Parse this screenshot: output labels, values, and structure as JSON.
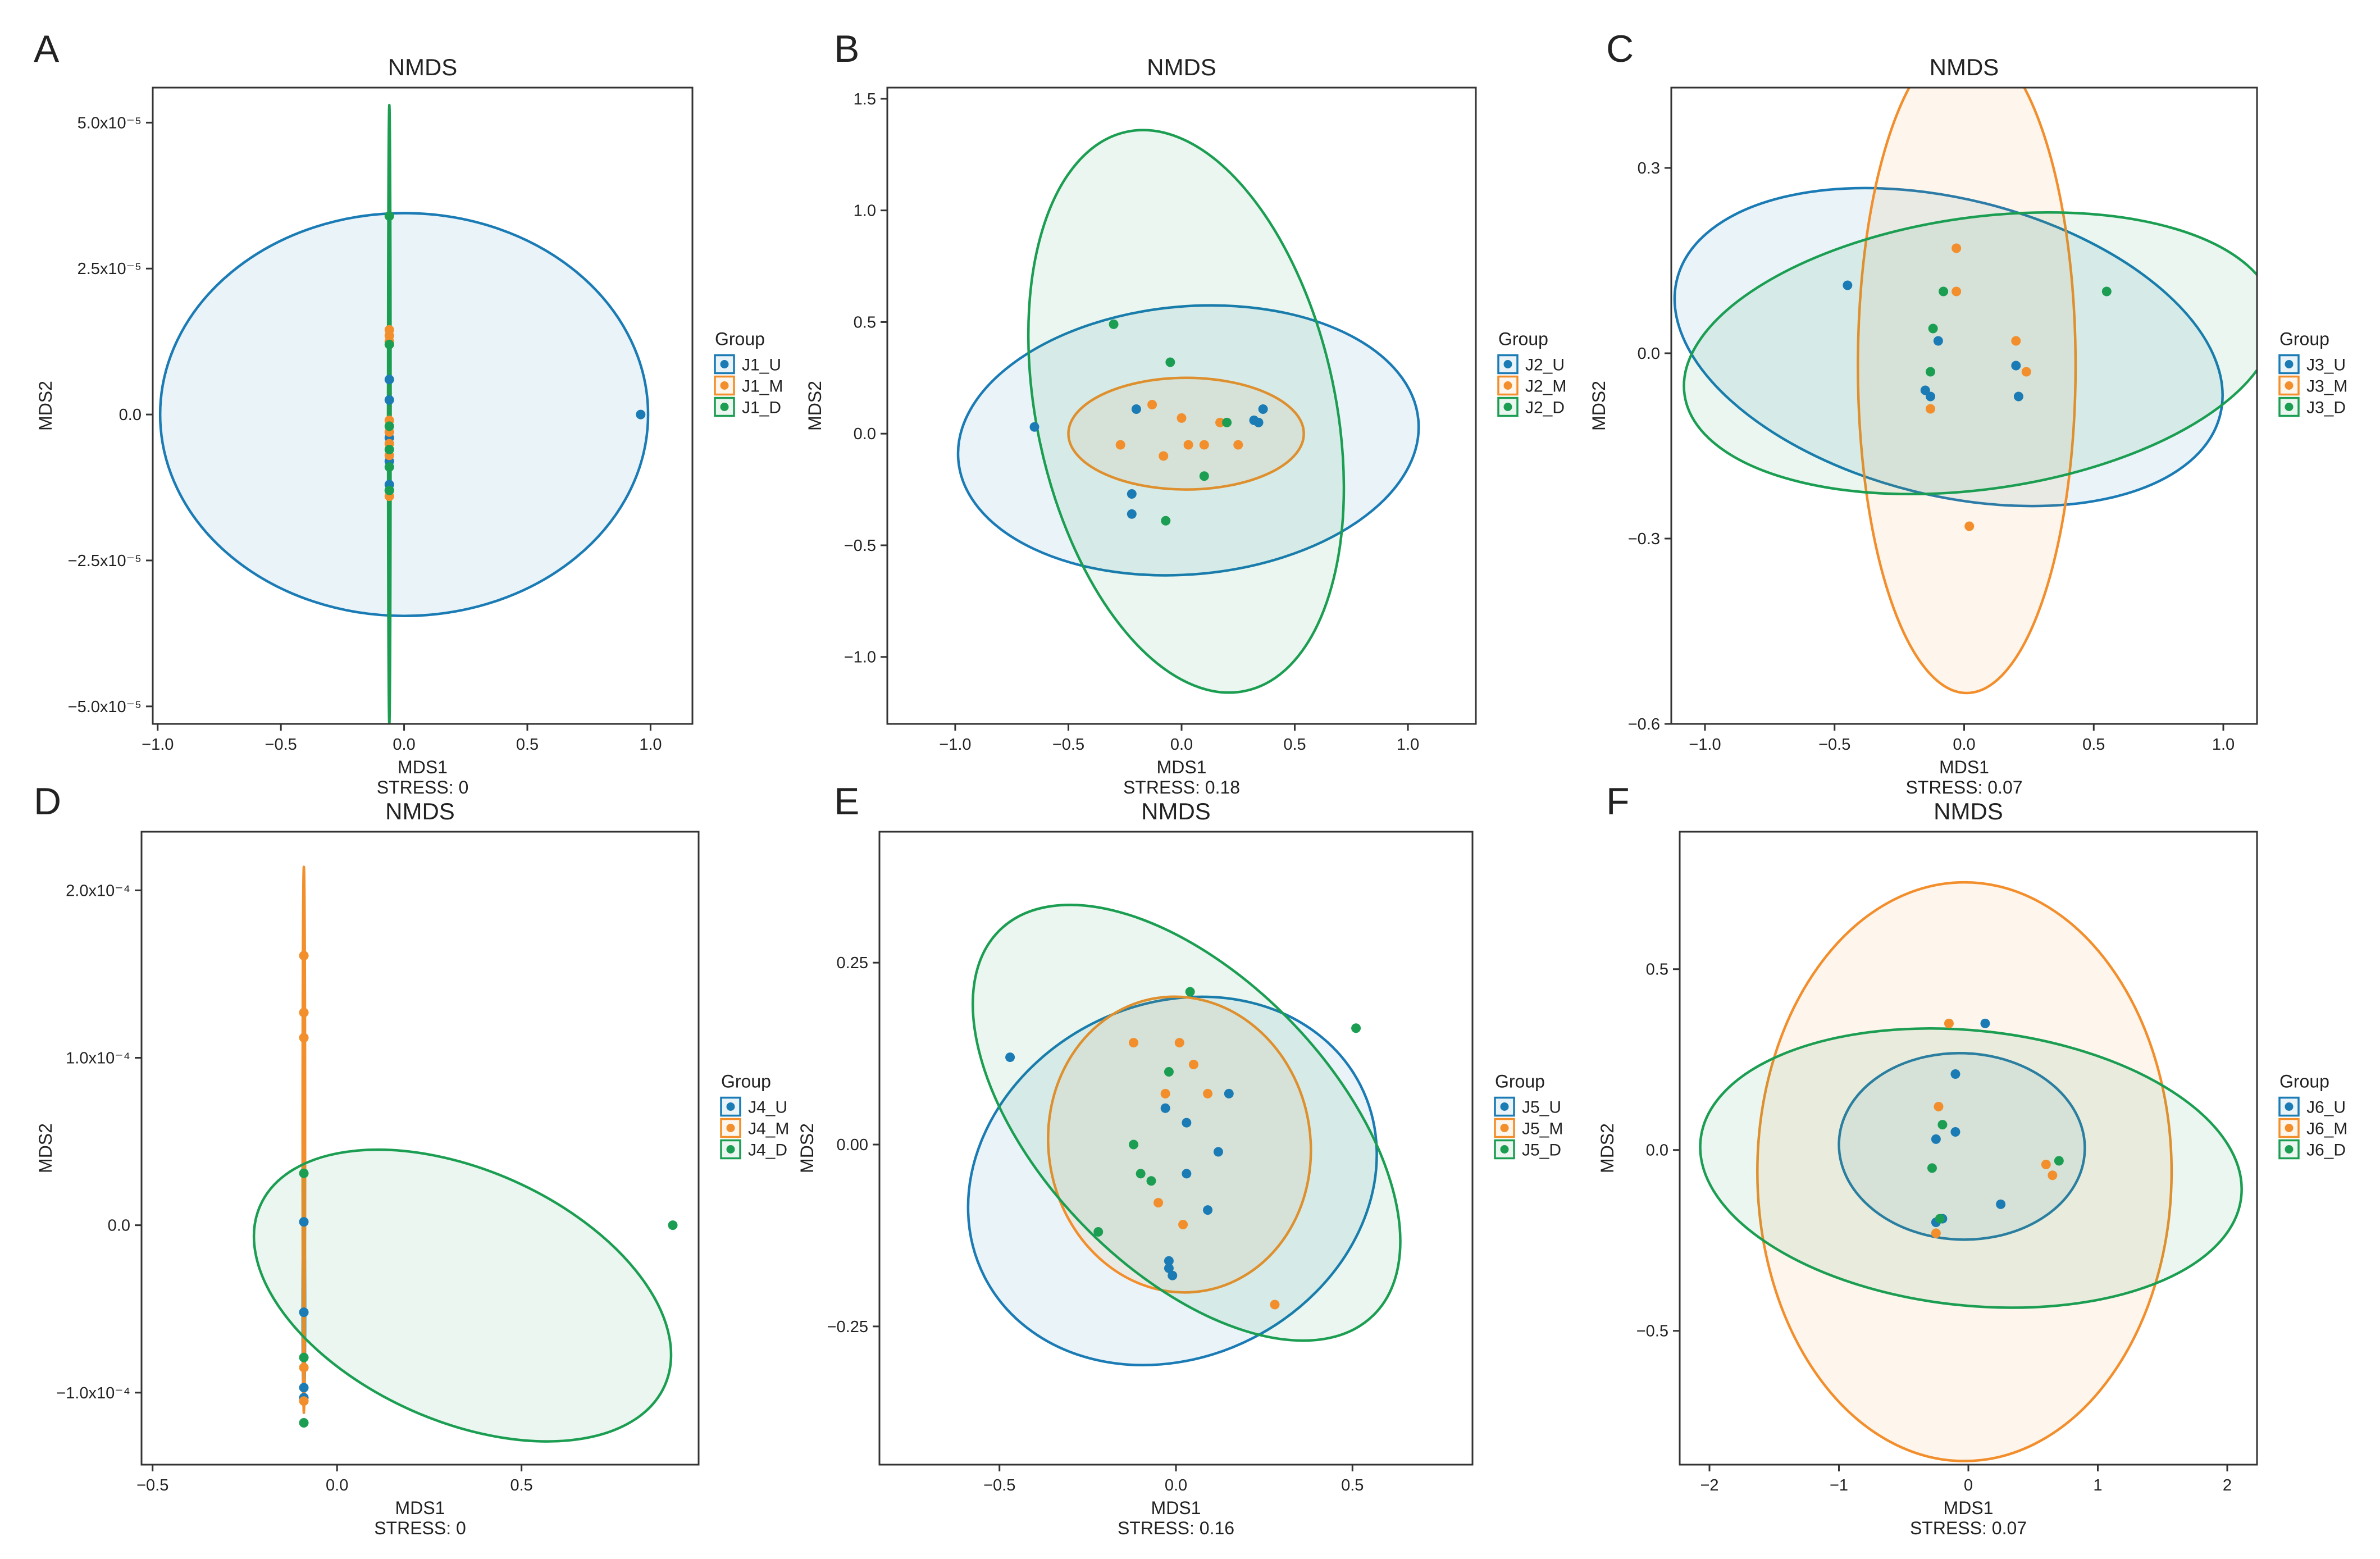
{
  "chart_data": [
    {
      "type": "scatter",
      "panel": "A",
      "title": "NMDS",
      "xlabel": "MDS1",
      "ylabel": "MDS2",
      "stress_label": "STRESS: 0",
      "xlim": [
        -1.02,
        1.17
      ],
      "ylim": [
        -5.3e-05,
        5.6e-05
      ],
      "xticks": [
        {
          "v": -1.0,
          "t": "−1.0"
        },
        {
          "v": -0.5,
          "t": "−0.5"
        },
        {
          "v": 0.0,
          "t": "0.0"
        },
        {
          "v": 0.5,
          "t": "0.5"
        },
        {
          "v": 1.0,
          "t": "1.0"
        }
      ],
      "yticks": [
        {
          "v": -5e-05,
          "t": "−5.0x10⁻⁵"
        },
        {
          "v": -2.5e-05,
          "t": "−2.5x10⁻⁵"
        },
        {
          "v": 0,
          "t": "0.0"
        },
        {
          "v": 2.5e-05,
          "t": "2.5x10⁻⁵"
        },
        {
          "v": 5e-05,
          "t": "5.0x10⁻⁵"
        }
      ],
      "legend_title": "Group",
      "series": [
        {
          "name": "J1_U",
          "color": "#1a7bb5",
          "points": [
            [
              -0.06,
              6e-06
            ],
            [
              -0.06,
              2.5e-06
            ],
            [
              -0.06,
              -4e-06
            ],
            [
              -0.06,
              -8e-06
            ],
            [
              -0.06,
              -1.2e-05
            ],
            [
              -0.06,
              -1.3e-05
            ],
            [
              0.96,
              0
            ]
          ],
          "ellipse": {
            "cx": 0.0,
            "cy": 0.0,
            "rx": 0.99,
            "ry": 3.45e-05,
            "angle": 0
          }
        },
        {
          "name": "J1_M",
          "color": "#f28e2b",
          "points": [
            [
              -0.06,
              1.45e-05
            ],
            [
              -0.06,
              1.35e-05
            ],
            [
              -0.06,
              1.25e-05
            ],
            [
              -0.06,
              -1e-06
            ],
            [
              -0.06,
              -3e-06
            ],
            [
              -0.06,
              -5e-06
            ],
            [
              -0.06,
              -7e-06
            ],
            [
              -0.06,
              -1.4e-05
            ]
          ],
          "ellipse": {
            "cx": -0.06,
            "cy": 0.0,
            "rx": 0.003,
            "ry": 1.6e-05,
            "angle": 0
          }
        },
        {
          "name": "J1_D",
          "color": "#1b9e52",
          "points": [
            [
              -0.06,
              3.4e-05
            ],
            [
              -0.06,
              1.2e-05
            ],
            [
              -0.06,
              -2e-06
            ],
            [
              -0.06,
              -6e-06
            ],
            [
              -0.06,
              -9e-06
            ],
            [
              -0.06,
              -1.3e-05
            ]
          ],
          "ellipse": {
            "cx": -0.06,
            "cy": 0.0,
            "rx": 0.002,
            "ry": 5.3e-05,
            "angle": 0
          }
        }
      ]
    },
    {
      "type": "scatter",
      "panel": "B",
      "title": "NMDS",
      "xlabel": "MDS1",
      "ylabel": "MDS2",
      "stress_label": "STRESS: 0.18",
      "xlim": [
        -1.3,
        1.3
      ],
      "ylim": [
        -1.3,
        1.55
      ],
      "xticks": [
        {
          "v": -1.0,
          "t": "−1.0"
        },
        {
          "v": -0.5,
          "t": "−0.5"
        },
        {
          "v": 0.0,
          "t": "0.0"
        },
        {
          "v": 0.5,
          "t": "0.5"
        },
        {
          "v": 1.0,
          "t": "1.0"
        }
      ],
      "yticks": [
        {
          "v": -1.0,
          "t": "−1.0"
        },
        {
          "v": -0.5,
          "t": "−0.5"
        },
        {
          "v": 0.0,
          "t": "0.0"
        },
        {
          "v": 0.5,
          "t": "0.5"
        },
        {
          "v": 1.0,
          "t": "1.0"
        },
        {
          "v": 1.5,
          "t": "1.5"
        }
      ],
      "legend_title": "Group",
      "series": [
        {
          "name": "J2_U",
          "color": "#1a7bb5",
          "points": [
            [
              -0.65,
              0.03
            ],
            [
              -0.2,
              0.11
            ],
            [
              -0.22,
              -0.27
            ],
            [
              -0.22,
              -0.36
            ],
            [
              0.32,
              0.06
            ],
            [
              0.34,
              0.05
            ],
            [
              0.36,
              0.11
            ]
          ],
          "ellipse": {
            "cx": 0.03,
            "cy": -0.03,
            "rx": 1.02,
            "ry": 0.6,
            "angle": 5
          }
        },
        {
          "name": "J2_M",
          "color": "#f28e2b",
          "points": [
            [
              -0.27,
              -0.05
            ],
            [
              -0.13,
              0.13
            ],
            [
              -0.08,
              -0.1
            ],
            [
              0.0,
              0.07
            ],
            [
              0.03,
              -0.05
            ],
            [
              0.1,
              -0.05
            ],
            [
              0.17,
              0.05
            ],
            [
              0.25,
              -0.05
            ]
          ],
          "ellipse": {
            "cx": 0.02,
            "cy": 0.0,
            "rx": 0.52,
            "ry": 0.25,
            "angle": 0
          }
        },
        {
          "name": "J2_D",
          "color": "#1b9e52",
          "points": [
            [
              -0.3,
              0.49
            ],
            [
              -0.05,
              0.32
            ],
            [
              0.2,
              0.05
            ],
            [
              0.1,
              -0.19
            ],
            [
              -0.07,
              -0.39
            ]
          ],
          "ellipse": {
            "cx": 0.02,
            "cy": 0.1,
            "rx": 0.66,
            "ry": 1.28,
            "angle": 12
          }
        }
      ]
    },
    {
      "type": "scatter",
      "panel": "C",
      "title": "NMDS",
      "xlabel": "MDS1",
      "ylabel": "MDS2",
      "stress_label": "STRESS: 0.07",
      "xlim": [
        -1.13,
        1.13
      ],
      "ylim": [
        -0.6,
        0.43
      ],
      "xticks": [
        {
          "v": -1.0,
          "t": "−1.0"
        },
        {
          "v": -0.5,
          "t": "−0.5"
        },
        {
          "v": 0.0,
          "t": "0.0"
        },
        {
          "v": 0.5,
          "t": "0.5"
        },
        {
          "v": 1.0,
          "t": "1.0"
        }
      ],
      "yticks": [
        {
          "v": -0.6,
          "t": "−0.6"
        },
        {
          "v": -0.3,
          "t": "−0.3"
        },
        {
          "v": 0.0,
          "t": "0.0"
        },
        {
          "v": 0.3,
          "t": "0.3"
        }
      ],
      "legend_title": "Group",
      "series": [
        {
          "name": "J3_U",
          "color": "#1a7bb5",
          "points": [
            [
              -0.45,
              0.11
            ],
            [
              -0.1,
              0.02
            ],
            [
              -0.15,
              -0.06
            ],
            [
              -0.13,
              -0.07
            ],
            [
              0.2,
              -0.02
            ],
            [
              0.21,
              -0.07
            ]
          ],
          "ellipse": {
            "cx": -0.06,
            "cy": 0.01,
            "rx": 1.08,
            "ry": 0.24,
            "angle": -14
          }
        },
        {
          "name": "J3_M",
          "color": "#f28e2b",
          "points": [
            [
              -0.03,
              0.17
            ],
            [
              -0.03,
              0.1
            ],
            [
              0.2,
              0.02
            ],
            [
              0.24,
              -0.03
            ],
            [
              -0.13,
              -0.09
            ],
            [
              0.02,
              -0.28
            ]
          ],
          "ellipse": {
            "cx": 0.01,
            "cy": -0.02,
            "rx": 0.42,
            "ry": 0.53,
            "angle": 0
          }
        },
        {
          "name": "J3_D",
          "color": "#1b9e52",
          "points": [
            [
              -0.08,
              0.1
            ],
            [
              -0.12,
              0.04
            ],
            [
              -0.13,
              -0.03
            ],
            [
              0.55,
              0.1
            ]
          ],
          "ellipse": {
            "cx": 0.06,
            "cy": 0.0,
            "rx": 1.15,
            "ry": 0.22,
            "angle": 8
          }
        }
      ]
    },
    {
      "type": "scatter",
      "panel": "D",
      "title": "NMDS",
      "xlabel": "MDS1",
      "ylabel": "MDS2",
      "stress_label": "STRESS: 0",
      "xlim": [
        -0.53,
        0.98
      ],
      "ylim": [
        -0.000143,
        0.000235
      ],
      "xticks": [
        {
          "v": -0.5,
          "t": "−0.5"
        },
        {
          "v": 0.0,
          "t": "0.0"
        },
        {
          "v": 0.5,
          "t": "0.5"
        }
      ],
      "yticks": [
        {
          "v": -0.0001,
          "t": "−1.0x10⁻⁴"
        },
        {
          "v": 0,
          "t": "0.0"
        },
        {
          "v": 0.0001,
          "t": "1.0x10⁻⁴"
        },
        {
          "v": 0.0002,
          "t": "2.0x10⁻⁴"
        }
      ],
      "legend_title": "Group",
      "series": [
        {
          "name": "J4_U",
          "color": "#1a7bb5",
          "points": [
            [
              -0.09,
              2e-06
            ],
            [
              -0.09,
              -5.2e-05
            ],
            [
              -0.09,
              -9.7e-05
            ],
            [
              -0.09,
              -0.000103
            ]
          ],
          "ellipse": {
            "cx": -0.09,
            "cy": -5e-05,
            "rx": 0.002,
            "ry": 5.5e-05,
            "angle": 0
          }
        },
        {
          "name": "J4_M",
          "color": "#f28e2b",
          "points": [
            [
              -0.09,
              0.000161
            ],
            [
              -0.09,
              0.000127
            ],
            [
              -0.09,
              0.000112
            ],
            [
              -0.09,
              -8.5e-05
            ],
            [
              -0.09,
              -0.000105
            ]
          ],
          "ellipse": {
            "cx": -0.09,
            "cy": 5.1e-05,
            "rx": 0.003,
            "ry": 0.000163,
            "angle": 0
          }
        },
        {
          "name": "J4_D",
          "color": "#1b9e52",
          "points": [
            [
              -0.09,
              3.1e-05
            ],
            [
              -0.09,
              -7.9e-05
            ],
            [
              -0.09,
              -0.000118
            ],
            [
              0.91,
              0
            ]
          ],
          "ellipse": {
            "cx": 0.34,
            "cy": -4.2e-05,
            "rx": 0.6,
            "ry": 7.5e-05,
            "angle": -24
          }
        }
      ]
    },
    {
      "type": "scatter",
      "panel": "E",
      "title": "NMDS",
      "xlabel": "MDS1",
      "ylabel": "MDS2",
      "stress_label": "STRESS: 0.16",
      "xlim": [
        -0.84,
        0.84
      ],
      "ylim": [
        -0.44,
        0.43
      ],
      "xticks": [
        {
          "v": -0.5,
          "t": "−0.5"
        },
        {
          "v": 0.0,
          "t": "0.0"
        },
        {
          "v": 0.5,
          "t": "0.5"
        }
      ],
      "yticks": [
        {
          "v": -0.25,
          "t": "−0.25"
        },
        {
          "v": 0.0,
          "t": "0.00"
        },
        {
          "v": 0.25,
          "t": "0.25"
        }
      ],
      "legend_title": "Group",
      "series": [
        {
          "name": "J5_U",
          "color": "#1a7bb5",
          "points": [
            [
              -0.47,
              0.12
            ],
            [
              -0.03,
              0.05
            ],
            [
              0.03,
              0.03
            ],
            [
              0.15,
              0.07
            ],
            [
              0.12,
              -0.01
            ],
            [
              0.03,
              -0.04
            ],
            [
              0.09,
              -0.09
            ],
            [
              -0.02,
              -0.16
            ],
            [
              -0.02,
              -0.17
            ],
            [
              -0.01,
              -0.18
            ]
          ],
          "ellipse": {
            "cx": -0.01,
            "cy": -0.05,
            "rx": 0.5,
            "ry": 0.29,
            "angle": -63
          }
        },
        {
          "name": "J5_M",
          "color": "#f28e2b",
          "points": [
            [
              -0.12,
              0.14
            ],
            [
              0.01,
              0.14
            ],
            [
              0.05,
              0.11
            ],
            [
              0.09,
              0.07
            ],
            [
              -0.03,
              0.07
            ],
            [
              -0.05,
              -0.08
            ],
            [
              0.02,
              -0.11
            ],
            [
              0.28,
              -0.22
            ]
          ],
          "ellipse": {
            "cx": 0.01,
            "cy": 0.0,
            "rx": 0.42,
            "ry": 0.18,
            "angle": -81
          }
        },
        {
          "name": "J5_D",
          "color": "#1b9e52",
          "points": [
            [
              0.04,
              0.21
            ],
            [
              -0.02,
              0.1
            ],
            [
              -0.12,
              0.0
            ],
            [
              -0.1,
              -0.04
            ],
            [
              -0.07,
              -0.05
            ],
            [
              -0.22,
              -0.12
            ],
            [
              0.51,
              0.16
            ]
          ],
          "ellipse": {
            "cx": 0.03,
            "cy": 0.03,
            "rx": 0.76,
            "ry": 0.2,
            "angle": -46
          }
        }
      ]
    },
    {
      "type": "scatter",
      "panel": "F",
      "title": "NMDS",
      "xlabel": "MDS1",
      "ylabel": "MDS2",
      "stress_label": "STRESS: 0.07",
      "xlim": [
        -2.23,
        2.23
      ],
      "ylim": [
        -0.87,
        0.88
      ],
      "xticks": [
        {
          "v": -2,
          "t": "−2"
        },
        {
          "v": -1,
          "t": "−1"
        },
        {
          "v": 0,
          "t": "0"
        },
        {
          "v": 1,
          "t": "1"
        },
        {
          "v": 2,
          "t": "2"
        }
      ],
      "yticks": [
        {
          "v": -0.5,
          "t": "−0.5"
        },
        {
          "v": 0.0,
          "t": "0.0"
        },
        {
          "v": 0.5,
          "t": "0.5"
        }
      ],
      "legend_title": "Group",
      "series": [
        {
          "name": "J6_U",
          "color": "#1a7bb5",
          "points": [
            [
              0.13,
              0.35
            ],
            [
              -0.1,
              0.21
            ],
            [
              -0.1,
              0.05
            ],
            [
              -0.25,
              0.03
            ],
            [
              0.25,
              -0.15
            ],
            [
              -0.25,
              -0.2
            ],
            [
              -0.2,
              -0.19
            ]
          ],
          "ellipse": {
            "cx": -0.05,
            "cy": 0.01,
            "rx": 0.72,
            "ry": 0.34,
            "angle": -92
          }
        },
        {
          "name": "J6_M",
          "color": "#f28e2b",
          "points": [
            [
              -0.15,
              0.35
            ],
            [
              -0.23,
              0.12
            ],
            [
              0.6,
              -0.04
            ],
            [
              0.65,
              -0.07
            ],
            [
              -0.25,
              -0.23
            ]
          ],
          "ellipse": {
            "cx": -0.03,
            "cy": -0.06,
            "rx": 1.6,
            "ry": 0.8,
            "angle": 0
          }
        },
        {
          "name": "J6_D",
          "color": "#1b9e52",
          "points": [
            [
              -0.2,
              0.07
            ],
            [
              -0.28,
              -0.05
            ],
            [
              0.7,
              -0.03
            ],
            [
              -0.22,
              -0.19
            ]
          ],
          "ellipse": {
            "cx": 0.02,
            "cy": -0.05,
            "rx": 2.1,
            "ry": 0.38,
            "angle": -6
          }
        }
      ]
    }
  ]
}
